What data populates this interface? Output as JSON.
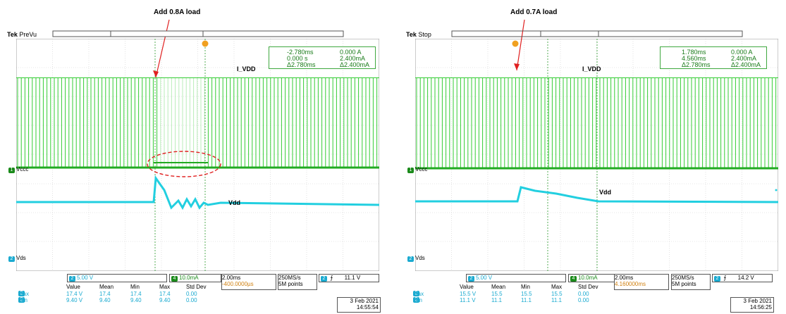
{
  "left": {
    "annotation": "Add 0.8A load",
    "brand": "Tek",
    "state": "PreVu",
    "trigger_marker": "T",
    "signal_ivdd": "I_VDD",
    "signal_vdd": "Vdd",
    "signal_vccc": "Vccc",
    "signal_vds": "Vds",
    "cursor_a_time": "-2.780ms",
    "cursor_a_val": "0.000 A",
    "cursor_b_time": "0.000 s",
    "cursor_b_val": "2.400mA",
    "cursor_dt": "Δ2.780ms",
    "cursor_dv": "Δ2.400mA",
    "ch2_scale": "5.00 V",
    "ch4_scale": "10.0mA",
    "timebase": "2.00ms",
    "trigger_pos": "-400.0000µs",
    "sample_rate": "250MS/s",
    "record_len": "5M points",
    "trig_level": "11.1 V",
    "stats_headers": [
      "Value",
      "Mean",
      "Min",
      "Max",
      "Std Dev"
    ],
    "stats_max": [
      "Max",
      "17.4 V",
      "17.4",
      "17.4",
      "17.4",
      "0.00"
    ],
    "stats_min": [
      "Min",
      "9.40 V",
      "9.40",
      "9.40",
      "9.40",
      "0.00"
    ],
    "date": "3 Feb  2021",
    "time": "14:55:54"
  },
  "right": {
    "annotation": "Add 0.7A load",
    "brand": "Tek",
    "state": "Stop",
    "trigger_marker": "T",
    "signal_ivdd": "I_VDD",
    "signal_vdd": "Vdd",
    "signal_vccc": "Vccc",
    "signal_vds": "Vds",
    "cursor_a_time": "1.780ms",
    "cursor_a_val": "0.000 A",
    "cursor_b_time": "4.560ms",
    "cursor_b_val": "2.400mA",
    "cursor_dt": "Δ2.780ms",
    "cursor_dv": "Δ2.400mA",
    "ch2_scale": "5.00 V",
    "ch4_scale": "10.0mA",
    "timebase": "2.00ms",
    "trigger_pos": "4.160000ms",
    "sample_rate": "250MS/s",
    "record_len": "5M points",
    "trig_level": "14.2 V",
    "stats_headers": [
      "Value",
      "Mean",
      "Min",
      "Max",
      "Std Dev"
    ],
    "stats_max": [
      "Max",
      "15.5 V",
      "15.5",
      "15.5",
      "15.5",
      "0.00"
    ],
    "stats_min": [
      "Min",
      "11.1 V",
      "11.1",
      "11.1",
      "11.1",
      "0.00"
    ],
    "date": "3 Feb  2021",
    "time": "14:56:25"
  },
  "colors": {
    "green": "#33cc33",
    "cyan": "#22cfe0",
    "grid": "#c8c8c8",
    "orange": "#f0a020",
    "red": "#e02020"
  }
}
